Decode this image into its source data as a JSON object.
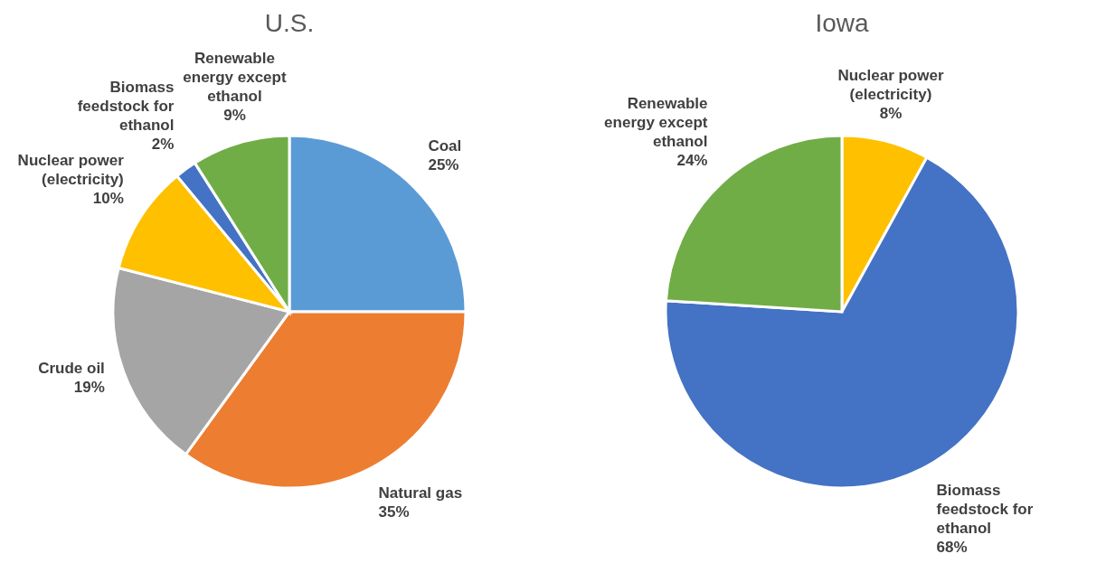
{
  "chart_data": [
    {
      "type": "pie",
      "title": "U.S.",
      "categories": [
        "Coal",
        "Natural gas",
        "Crude oil",
        "Nuclear power (electricity)",
        "Biomass feedstock for ethanol",
        "Renewable energy except ethanol"
      ],
      "values": [
        25,
        35,
        19,
        10,
        2,
        9
      ],
      "colors": [
        "#5b9bd5",
        "#ed7d31",
        "#a5a5a5",
        "#ffc000",
        "#4472c4",
        "#70ad47"
      ],
      "value_labels": [
        "25%",
        "35%",
        "19%",
        "10%",
        "2%",
        "9%"
      ],
      "legend": false
    },
    {
      "type": "pie",
      "title": "Iowa",
      "categories": [
        "Nuclear power (electricity)",
        "Biomass feedstock for ethanol",
        "Renewable energy except ethanol"
      ],
      "values": [
        8,
        68,
        24
      ],
      "colors": [
        "#ffc000",
        "#4472c4",
        "#70ad47"
      ],
      "value_labels": [
        "8%",
        "68%",
        "24%"
      ],
      "legend": false
    }
  ]
}
